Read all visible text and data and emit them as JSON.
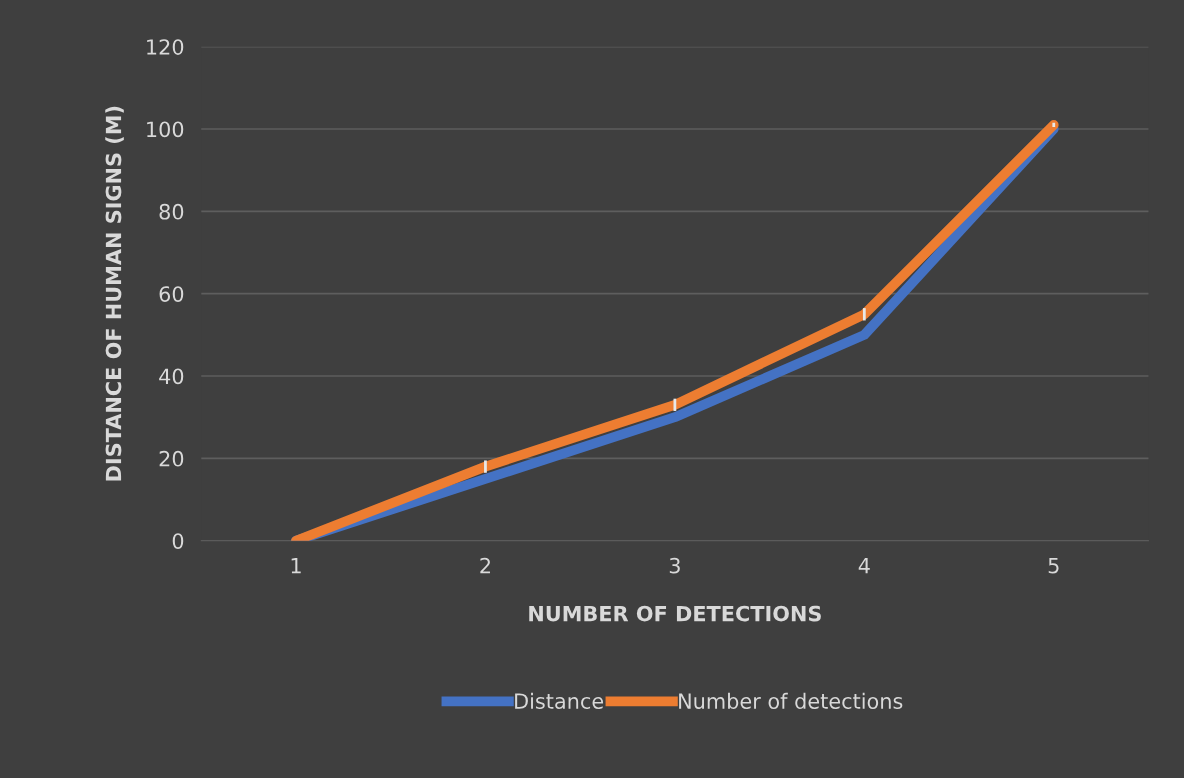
{
  "chart_data": {
    "type": "line",
    "xlabel": "NUMBER OF DETECTIONS",
    "ylabel": "DISTANCE OF HUMAN SIGNS (M)",
    "categories": [
      "1",
      "2",
      "3",
      "4",
      "5"
    ],
    "ylim": [
      0,
      120
    ],
    "yticks": [
      0,
      20,
      40,
      60,
      80,
      100,
      120
    ],
    "grid": "y",
    "legend": "bottom",
    "marker": "none",
    "line_style": "solid",
    "series": [
      {
        "name": "Distance",
        "color": "#4472c4",
        "values": [
          0,
          15,
          30,
          50,
          100
        ]
      },
      {
        "name": "Number of detections",
        "color": "#ed7d31",
        "values": [
          0,
          18,
          33,
          55,
          101
        ],
        "errors": [
          null,
          1.5,
          1.5,
          1.5,
          0.5
        ]
      }
    ]
  }
}
